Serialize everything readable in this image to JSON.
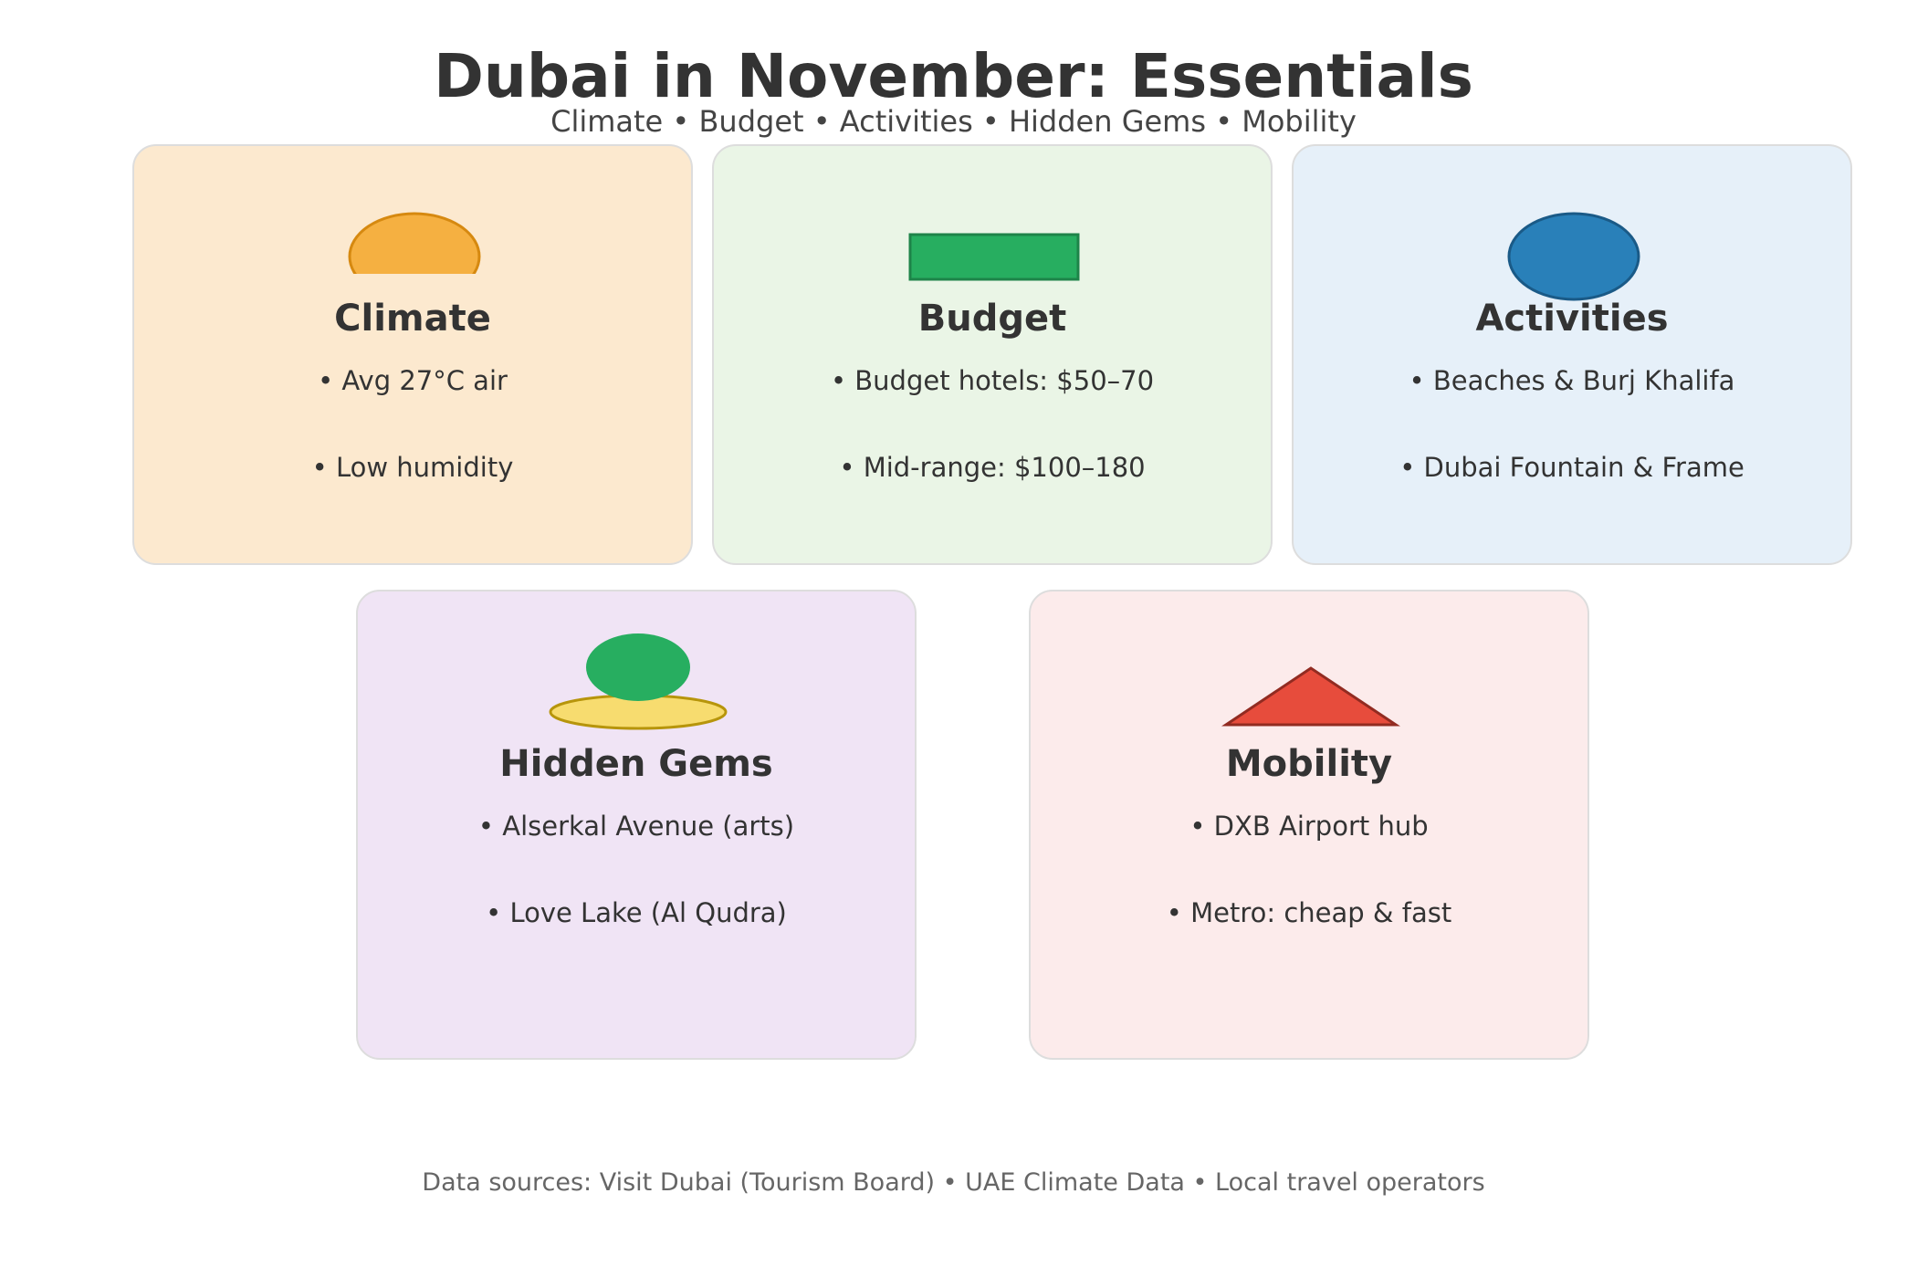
{
  "header": {
    "title": "Dubai in November: Essentials",
    "subtitle": "Climate • Budget • Activities • Hidden Gems • Mobility"
  },
  "cards": [
    {
      "id": "climate",
      "title": "Climate",
      "icon": "sun-icon",
      "background": "#fce9cf",
      "accent": "#f5b041",
      "bullets": [
        "• Avg 27°C air",
        "• Low humidity"
      ]
    },
    {
      "id": "budget",
      "title": "Budget",
      "icon": "banknote-icon",
      "background": "#eaf5e6",
      "accent": "#27ae60",
      "bullets": [
        "• Budget hotels: $50–70",
        "• Mid-range: $100–180"
      ]
    },
    {
      "id": "activities",
      "title": "Activities",
      "icon": "ball-icon",
      "background": "#e6f0f9",
      "accent": "#2980b9",
      "bullets": [
        "• Beaches & Burj Khalifa",
        "• Dubai Fountain & Frame"
      ]
    },
    {
      "id": "hidden-gems",
      "title": "Hidden Gems",
      "icon": "oasis-icon",
      "background": "#f0e4f5",
      "accent": "#27ae60",
      "bullets": [
        "• Alserkal Avenue (arts)",
        "• Love Lake (Al Qudra)"
      ]
    },
    {
      "id": "mobility",
      "title": "Mobility",
      "icon": "triangle-icon",
      "background": "#fcebeb",
      "accent": "#e74c3c",
      "bullets": [
        "• DXB Airport hub",
        "• Metro: cheap & fast"
      ]
    }
  ],
  "footer": {
    "sources": "Data sources: Visit Dubai (Tourism Board) • UAE Climate Data • Local travel operators"
  }
}
